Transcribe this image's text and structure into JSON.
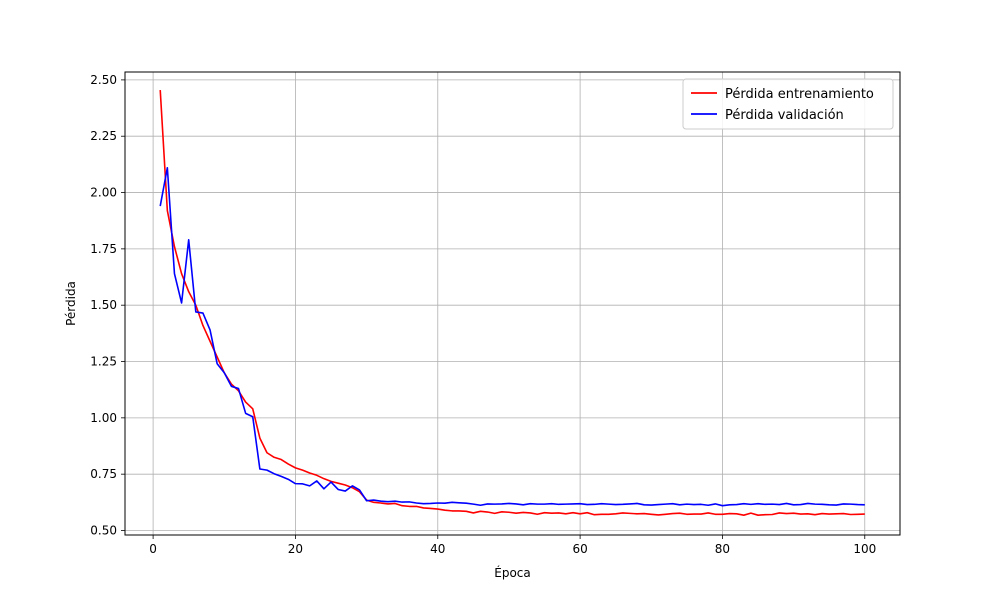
{
  "chart_data": {
    "type": "line",
    "title": "",
    "xlabel": "Época",
    "ylabel": "Pérdida",
    "xlim": [
      -3.95,
      104.95
    ],
    "ylim": [
      0.48,
      2.535
    ],
    "xticks": [
      0,
      20,
      40,
      60,
      80,
      100
    ],
    "xtick_labels": [
      "0",
      "20",
      "40",
      "60",
      "80",
      "100"
    ],
    "yticks": [
      0.5,
      0.75,
      1.0,
      1.25,
      1.5,
      1.75,
      2.0,
      2.25,
      2.5
    ],
    "ytick_labels": [
      "0.50",
      "0.75",
      "1.00",
      "1.25",
      "1.50",
      "1.75",
      "2.00",
      "2.25",
      "2.50"
    ],
    "grid": true,
    "legend_position": "top-right",
    "x": [
      1,
      2,
      3,
      4,
      5,
      6,
      7,
      8,
      9,
      10,
      11,
      12,
      13,
      14,
      15,
      16,
      17,
      18,
      19,
      20,
      21,
      22,
      23,
      24,
      25,
      26,
      27,
      28,
      29,
      30,
      31,
      32,
      33,
      34,
      35,
      36,
      37,
      38,
      39,
      40,
      41,
      42,
      43,
      44,
      45,
      46,
      47,
      48,
      49,
      50,
      51,
      52,
      53,
      54,
      55,
      56,
      57,
      58,
      59,
      60,
      61,
      62,
      63,
      64,
      65,
      66,
      67,
      68,
      69,
      70,
      71,
      72,
      73,
      74,
      75,
      76,
      77,
      78,
      79,
      80,
      81,
      82,
      83,
      84,
      85,
      86,
      87,
      88,
      89,
      90,
      91,
      92,
      93,
      94,
      95,
      96,
      97,
      98,
      99,
      100
    ],
    "series": [
      {
        "name": "Pérdida entrenamiento",
        "color": "#ff0000",
        "values": [
          2.455,
          1.92,
          1.76,
          1.64,
          1.56,
          1.5,
          1.41,
          1.34,
          1.27,
          1.2,
          1.15,
          1.12,
          1.07,
          1.04,
          0.91,
          0.845,
          0.825,
          0.815,
          0.795,
          0.778,
          0.768,
          0.755,
          0.745,
          0.73,
          0.718,
          0.71,
          0.702,
          0.69,
          0.672,
          0.635,
          0.625,
          0.622,
          0.618,
          0.62,
          0.61,
          0.607,
          0.607,
          0.6,
          0.598,
          0.595,
          0.59,
          0.587,
          0.587,
          0.585,
          0.578,
          0.585,
          0.582,
          0.576,
          0.583,
          0.581,
          0.577,
          0.58,
          0.578,
          0.572,
          0.579,
          0.577,
          0.578,
          0.574,
          0.579,
          0.574,
          0.579,
          0.57,
          0.572,
          0.572,
          0.574,
          0.578,
          0.576,
          0.574,
          0.575,
          0.572,
          0.569,
          0.572,
          0.575,
          0.577,
          0.572,
          0.573,
          0.573,
          0.578,
          0.572,
          0.572,
          0.575,
          0.574,
          0.568,
          0.577,
          0.568,
          0.57,
          0.571,
          0.578,
          0.575,
          0.577,
          0.573,
          0.574,
          0.57,
          0.575,
          0.573,
          0.574,
          0.575,
          0.571,
          0.572,
          0.573
        ]
      },
      {
        "name": "Pérdida validación",
        "color": "#0000ff",
        "values": [
          1.94,
          2.11,
          1.64,
          1.51,
          1.79,
          1.47,
          1.465,
          1.39,
          1.24,
          1.2,
          1.14,
          1.13,
          1.02,
          1.005,
          0.773,
          0.768,
          0.752,
          0.74,
          0.727,
          0.708,
          0.707,
          0.698,
          0.72,
          0.685,
          0.715,
          0.682,
          0.675,
          0.698,
          0.68,
          0.632,
          0.635,
          0.63,
          0.628,
          0.63,
          0.626,
          0.627,
          0.622,
          0.619,
          0.62,
          0.622,
          0.621,
          0.625,
          0.623,
          0.621,
          0.617,
          0.612,
          0.618,
          0.617,
          0.618,
          0.62,
          0.618,
          0.614,
          0.619,
          0.617,
          0.617,
          0.619,
          0.616,
          0.617,
          0.618,
          0.619,
          0.615,
          0.616,
          0.619,
          0.617,
          0.615,
          0.616,
          0.618,
          0.62,
          0.614,
          0.613,
          0.615,
          0.617,
          0.619,
          0.614,
          0.617,
          0.615,
          0.616,
          0.612,
          0.618,
          0.61,
          0.614,
          0.615,
          0.619,
          0.616,
          0.619,
          0.616,
          0.617,
          0.615,
          0.62,
          0.614,
          0.615,
          0.62,
          0.617,
          0.616,
          0.614,
          0.613,
          0.618,
          0.617,
          0.615,
          0.614
        ]
      }
    ]
  }
}
